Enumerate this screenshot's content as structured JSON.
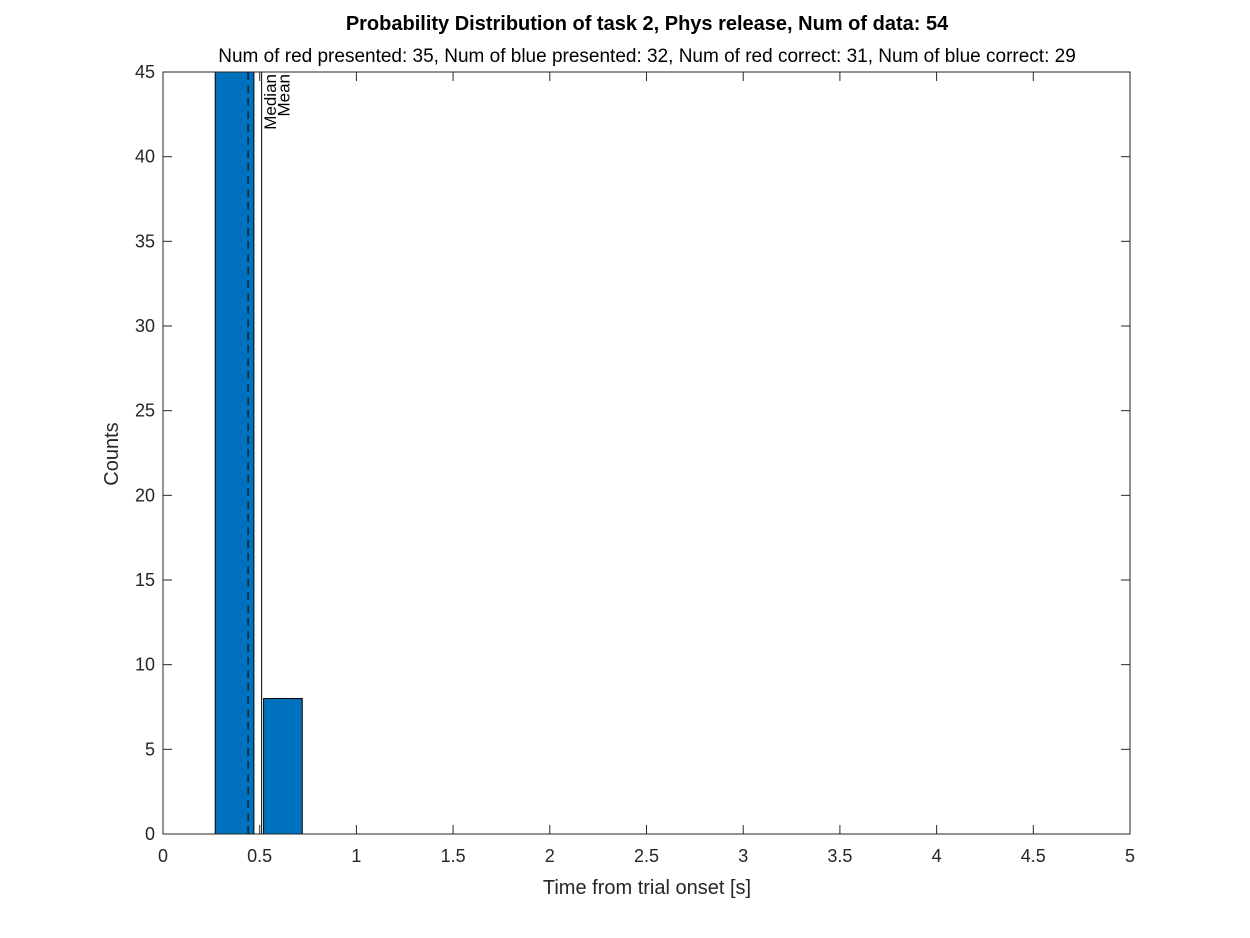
{
  "chart_data": {
    "type": "bar",
    "title": "Probability Distribution of task 2, Phys release, Num of data: 54",
    "subtitle": "Num of red presented: 35, Num of blue presented: 32, Num of red correct: 31, Num of blue correct: 29",
    "xlabel": "Time from trial onset [s]",
    "ylabel": "Counts",
    "xlim": [
      0,
      5
    ],
    "ylim": [
      0,
      45
    ],
    "xticks": [
      "0",
      "0.5",
      "1",
      "1.5",
      "2",
      "2.5",
      "3",
      "3.5",
      "4",
      "4.5",
      "5"
    ],
    "yticks": [
      "0",
      "5",
      "10",
      "15",
      "20",
      "25",
      "30",
      "35",
      "40",
      "45"
    ],
    "bar_color": "#0072bd",
    "bins": [
      {
        "x0": 0.27,
        "x1": 0.47,
        "count": 46
      },
      {
        "x0": 0.52,
        "x1": 0.72,
        "count": 8
      }
    ],
    "reference_lines": [
      {
        "label": "Median",
        "x": 0.44,
        "style": "dashed"
      },
      {
        "label": "Mean",
        "x": 0.51,
        "style": "solid"
      }
    ],
    "grid": false,
    "legend": "none"
  }
}
